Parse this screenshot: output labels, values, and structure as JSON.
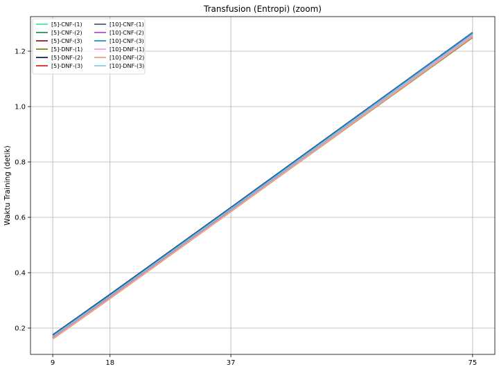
{
  "chart_data": {
    "type": "line",
    "title": "Transfusion (Entropi) (zoom)",
    "xlabel": "",
    "ylabel": "Waktu Training (detik)",
    "x": [
      9,
      18,
      37,
      75
    ],
    "x_ticks": [
      "9",
      "18",
      "37",
      "75"
    ],
    "xlim": [
      5.5,
      78.5
    ],
    "ylim": [
      0.105,
      1.325
    ],
    "y_ticks": [
      "0.2",
      "0.4",
      "0.6",
      "0.8",
      "1.0",
      "1.2"
    ],
    "y_tick_values": [
      0.2,
      0.4,
      0.6,
      0.8,
      1.0,
      1.2
    ],
    "grid": true,
    "legend_position": "top-left",
    "series": [
      {
        "name": "[5]-CNF-(1)",
        "color": "#3dea9c",
        "values": [
          0.168,
          0.313,
          0.627,
          1.262
        ]
      },
      {
        "name": "[5]-CNF-(2)",
        "color": "#2e8b57",
        "values": [
          0.167,
          0.312,
          0.626,
          1.258
        ]
      },
      {
        "name": "[5]-CNF-(3)",
        "color": "#8b1a1a",
        "values": [
          0.166,
          0.311,
          0.624,
          1.254
        ]
      },
      {
        "name": "[5]-DNF-(1)",
        "color": "#808020",
        "values": [
          0.165,
          0.309,
          0.621,
          1.249
        ]
      },
      {
        "name": "[5]-DNF-(2)",
        "color": "#1a1a5e",
        "values": [
          0.176,
          0.322,
          0.636,
          1.268
        ]
      },
      {
        "name": "[5]-DNF-(3)",
        "color": "#e02020",
        "values": [
          0.164,
          0.31,
          0.623,
          1.253
        ]
      },
      {
        "name": "[10]-CNF-(1)",
        "color": "#4a5a70",
        "values": [
          0.172,
          0.318,
          0.632,
          1.265
        ]
      },
      {
        "name": "[10]-CNF-(2)",
        "color": "#b44fc8",
        "values": [
          0.17,
          0.316,
          0.63,
          1.263
        ]
      },
      {
        "name": "[10]-CNF-(3)",
        "color": "#1f8fbf",
        "values": [
          0.174,
          0.32,
          0.634,
          1.267
        ]
      },
      {
        "name": "[10]-DNF-(1)",
        "color": "#e8a0e0",
        "values": [
          0.163,
          0.309,
          0.623,
          1.256
        ]
      },
      {
        "name": "[10]-DNF-(2)",
        "color": "#f0a070",
        "values": [
          0.16,
          0.306,
          0.62,
          1.252
        ]
      },
      {
        "name": "[10]-DNF-(3)",
        "color": "#8ecae6",
        "values": [
          0.169,
          0.315,
          0.629,
          1.261
        ]
      }
    ]
  }
}
